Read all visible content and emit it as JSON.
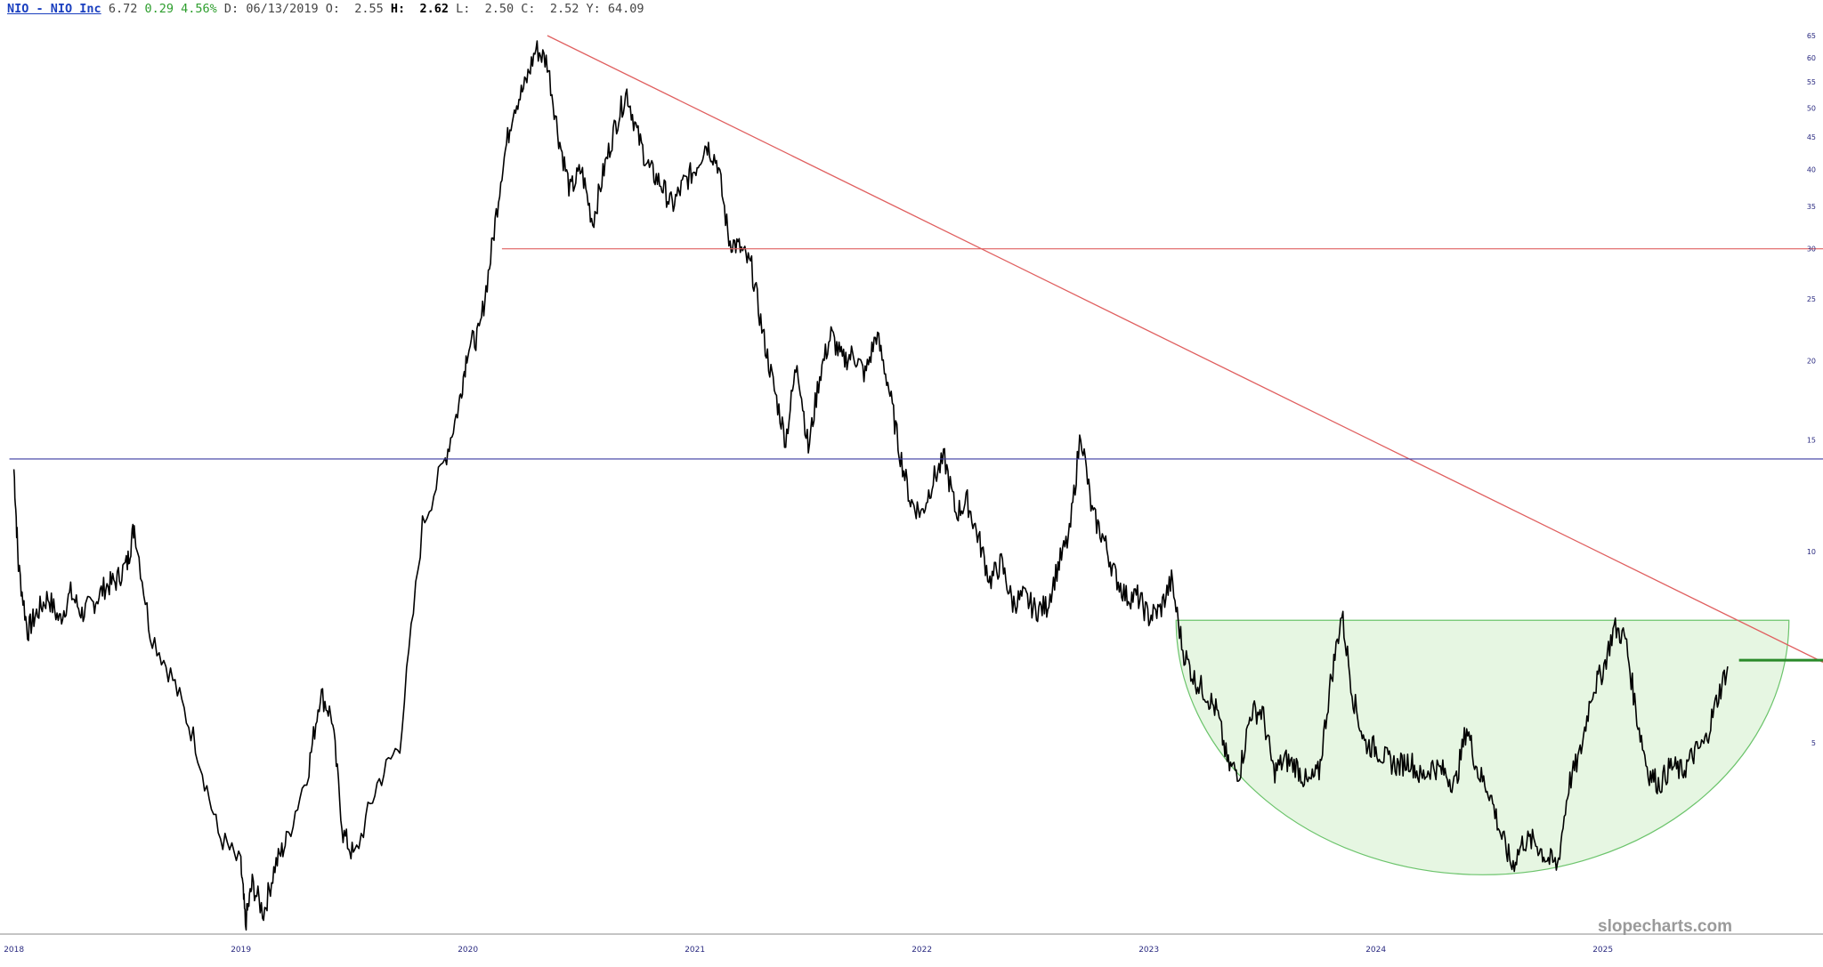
{
  "header": {
    "symbol": "NIO - NIO Inc",
    "last": "6.72",
    "change": "0.29",
    "change_pct": "4.56%",
    "date_label": "D:",
    "date": "06/13/2019",
    "open_label": "O:",
    "open": "2.55",
    "high_label": "H:",
    "high": "2.62",
    "low_label": "L:",
    "low": "2.50",
    "close_label": "C:",
    "close": "2.52",
    "y_label": "Y:",
    "y": "64.09"
  },
  "watermark": "slopecharts.com",
  "colors": {
    "price": "#000000",
    "resistance_line": "#e06060",
    "support_line": "#3a3aa0",
    "bowl_fill": "#e6f6e2",
    "bowl_stroke": "#6cc46c",
    "breakout_line": "#2a8a2a",
    "axis": "#2a2a80"
  },
  "chart_data": {
    "type": "line",
    "y_scale": "log",
    "ylim": [
      2.5,
      68
    ],
    "xlim": [
      2017.97,
      2025.97
    ],
    "y_ticks": [
      5,
      10,
      15,
      20,
      25,
      30,
      35,
      40,
      45,
      50,
      55,
      60,
      65
    ],
    "x_ticks": [
      {
        "label": "2018",
        "x": 2018.0
      },
      {
        "label": "2019",
        "x": 2019.0
      },
      {
        "label": "2020",
        "x": 2020.0
      },
      {
        "label": "2021",
        "x": 2021.0
      },
      {
        "label": "2022",
        "x": 2022.0
      },
      {
        "label": "2023",
        "x": 2023.0
      },
      {
        "label": "2024",
        "x": 2024.0
      },
      {
        "label": "2025",
        "x": 2025.0
      }
    ],
    "series": [
      {
        "x": [
          2018.0,
          2018.02,
          2018.06,
          2018.1,
          2018.15,
          2018.2,
          2018.25,
          2018.3,
          2018.35,
          2018.4,
          2018.45,
          2018.5,
          2018.53,
          2018.6,
          2018.7,
          2018.8,
          2018.9,
          2019.0,
          2019.02,
          2019.05,
          2019.1,
          2019.15,
          2019.2,
          2019.3,
          2019.35,
          2019.4,
          2019.45,
          2019.5,
          2019.6,
          2019.7,
          2019.8,
          2019.9,
          2019.96,
          2020.0,
          2020.05,
          2020.1,
          2020.15,
          2020.2,
          2020.25,
          2020.3,
          2020.35,
          2020.4,
          2020.45,
          2020.5,
          2020.55,
          2020.6,
          2020.65,
          2020.7,
          2020.75,
          2020.8,
          2020.85,
          2020.9,
          2020.95,
          2021.0,
          2021.05,
          2021.1,
          2021.15,
          2021.2,
          2021.25,
          2021.3,
          2021.35,
          2021.4,
          2021.45,
          2021.5,
          2021.55,
          2021.6,
          2021.65,
          2021.7,
          2021.75,
          2021.8,
          2021.85,
          2021.9,
          2021.95,
          2022.0,
          2022.05,
          2022.1,
          2022.15,
          2022.2,
          2022.25,
          2022.3,
          2022.35,
          2022.4,
          2022.45,
          2022.5,
          2022.55,
          2022.6,
          2022.65,
          2022.7,
          2022.75,
          2022.8,
          2022.85,
          2022.9,
          2022.95,
          2023.0,
          2023.05,
          2023.1,
          2023.15,
          2023.2,
          2023.25,
          2023.3,
          2023.35,
          2023.4,
          2023.45,
          2023.5,
          2023.55,
          2023.6,
          2023.65,
          2023.7,
          2023.75,
          2023.8,
          2023.85,
          2023.9,
          2023.95,
          2024.0,
          2024.05,
          2024.1,
          2024.15,
          2024.2,
          2024.25,
          2024.3,
          2024.35,
          2024.4,
          2024.45,
          2024.5,
          2024.55,
          2024.6,
          2024.65,
          2024.7,
          2024.75,
          2024.8,
          2024.85,
          2024.9,
          2024.95,
          2025.0,
          2025.05,
          2025.1,
          2025.15,
          2025.2,
          2025.25,
          2025.3,
          2025.35,
          2025.4,
          2025.45,
          2025.5,
          2025.55
        ],
        "y": [
          13.5,
          9.5,
          7.5,
          8.0,
          8.5,
          7.8,
          8.6,
          8.0,
          8.3,
          8.8,
          9.0,
          9.6,
          11.0,
          7.5,
          6.3,
          5.0,
          3.6,
          3.2,
          2.6,
          3.0,
          2.7,
          3.2,
          3.5,
          4.6,
          6.0,
          5.5,
          3.6,
          3.3,
          4.3,
          5.0,
          11.0,
          14.0,
          17.0,
          21.0,
          22.0,
          29.0,
          40.0,
          50.0,
          54.0,
          62.0,
          59.0,
          45.0,
          37.0,
          40.0,
          33.0,
          40.0,
          47.0,
          53.0,
          45.0,
          40.0,
          38.0,
          35.0,
          38.0,
          40.0,
          44.0,
          41.0,
          31.0,
          30.0,
          28.0,
          22.0,
          18.0,
          15.0,
          20.0,
          14.5,
          19.0,
          22.0,
          20.0,
          20.5,
          19.0,
          22.0,
          18.5,
          14.5,
          12.0,
          11.5,
          13.0,
          14.0,
          11.5,
          12.0,
          10.5,
          9.0,
          9.6,
          8.3,
          8.5,
          8.1,
          8.2,
          9.5,
          10.6,
          15.5,
          11.5,
          10.5,
          9.2,
          8.5,
          8.5,
          7.9,
          8.1,
          9.0,
          7.0,
          6.3,
          6.0,
          5.6,
          4.6,
          4.5,
          5.6,
          5.6,
          4.5,
          4.7,
          4.6,
          4.3,
          4.5,
          6.2,
          8.0,
          5.9,
          5.0,
          4.9,
          4.7,
          4.6,
          4.7,
          4.4,
          4.6,
          4.5,
          4.3,
          5.3,
          4.5,
          4.2,
          3.6,
          3.2,
          3.5,
          3.5,
          3.3,
          3.2,
          4.3,
          4.8,
          6.0,
          6.5,
          7.6,
          7.3,
          5.5,
          4.5,
          4.3,
          4.6,
          4.5,
          4.8,
          5.0,
          5.8,
          6.6
        ]
      }
    ],
    "annotations": [
      {
        "type": "trendline",
        "from": [
          2020.35,
          65
        ],
        "to": [
          2025.97,
          6.7
        ],
        "color": "#e06060"
      },
      {
        "type": "hline",
        "y": 30,
        "x_start": 2020.15,
        "color": "#e06060"
      },
      {
        "type": "hline",
        "y": 14,
        "x_start": 2017.98,
        "color": "#3a3aa0"
      },
      {
        "type": "hline",
        "y": 6.75,
        "x_start": 2025.6,
        "color": "#2a8a2a"
      },
      {
        "type": "bowl",
        "x_start": 2023.12,
        "x_end": 2025.82,
        "y_top": 7.8,
        "y_bottom": 3.1,
        "color": "#6cc46c"
      }
    ]
  }
}
